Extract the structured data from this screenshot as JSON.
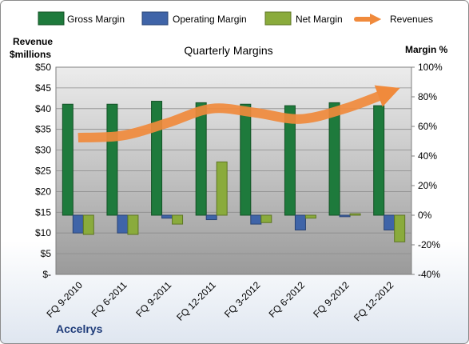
{
  "chart_data": {
    "type": "bar",
    "title": "Quarterly Margins",
    "company": "Accelrys",
    "left_axis_title": [
      "Revenue",
      "$millions"
    ],
    "right_axis_title": "Margin %",
    "categories": [
      "FQ 9-2010",
      "FQ 6-2011",
      "FQ 9-2011",
      "FQ 12-2011",
      "FQ 3-2012",
      "FQ 6-2012",
      "FQ 9-2012",
      "FQ 12-2012"
    ],
    "left_ticks": [
      "$-",
      "$5",
      "$10",
      "$15",
      "$20",
      "$25",
      "$30",
      "$35",
      "$40",
      "$45",
      "$50"
    ],
    "right_ticks": [
      "-40%",
      "-20%",
      "0%",
      "20%",
      "40%",
      "60%",
      "80%",
      "100%"
    ],
    "ylim_left": [
      0,
      50
    ],
    "ylim_right": [
      -40,
      100
    ],
    "legend_position": "top",
    "grid": true,
    "series": [
      {
        "name": "Gross Margin",
        "axis": "right",
        "kind": "bar",
        "color": "#1e7a3c",
        "values": [
          75,
          75,
          77,
          76,
          75,
          74,
          76,
          74
        ]
      },
      {
        "name": "Operating Margin",
        "axis": "right",
        "kind": "bar",
        "color": "#3f64a8",
        "values": [
          -12,
          -12,
          -2,
          -3,
          -6,
          -10,
          -1,
          -10
        ]
      },
      {
        "name": "Net Margin",
        "axis": "right",
        "kind": "bar",
        "color": "#8aab3c",
        "values": [
          -13,
          -13,
          -6,
          36,
          -5,
          -2,
          1,
          -18
        ]
      },
      {
        "name": "Revenues",
        "axis": "left",
        "kind": "line",
        "color": "#f08a3c",
        "values": [
          33,
          33.5,
          36.5,
          40,
          39,
          37.5,
          40,
          44
        ]
      }
    ]
  }
}
